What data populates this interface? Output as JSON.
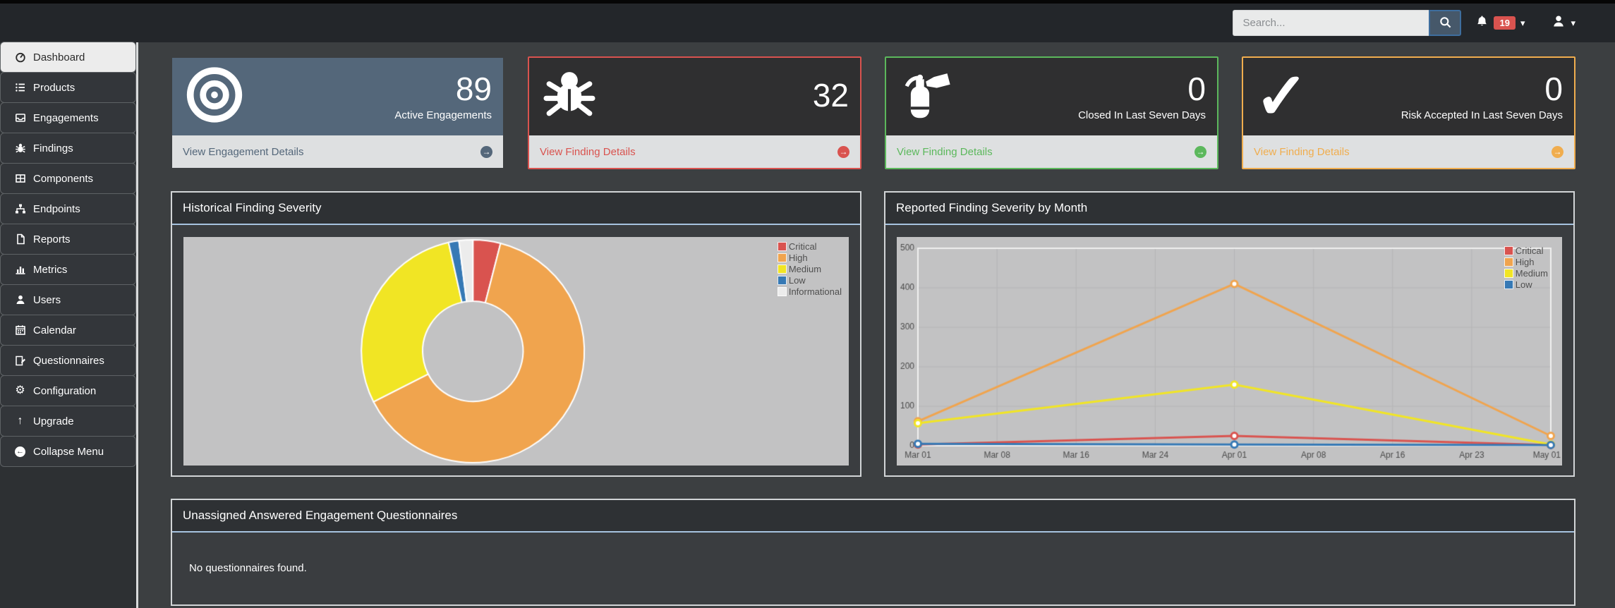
{
  "topbar": {
    "search_placeholder": "Search...",
    "notification_count": "19"
  },
  "icons": {
    "caret_down": "▾",
    "gear": "⚙",
    "arrow_up": "↑",
    "arrow_left": "←",
    "arrow_right": "→",
    "check": "✓"
  },
  "sidebar": {
    "items": [
      {
        "label": "Dashboard",
        "icon": "tachometer-icon",
        "active": true
      },
      {
        "label": "Products",
        "icon": "list-icon"
      },
      {
        "label": "Engagements",
        "icon": "inbox-icon"
      },
      {
        "label": "Findings",
        "icon": "bug-icon"
      },
      {
        "label": "Components",
        "icon": "table-icon"
      },
      {
        "label": "Endpoints",
        "icon": "sitemap-icon"
      },
      {
        "label": "Reports",
        "icon": "file-icon"
      },
      {
        "label": "Metrics",
        "icon": "bar-chart-icon"
      },
      {
        "label": "Users",
        "icon": "user-icon"
      },
      {
        "label": "Calendar",
        "icon": "calendar-icon"
      },
      {
        "label": "Questionnaires",
        "icon": "questionnaire-icon"
      },
      {
        "label": "Configuration",
        "icon": "gear-icon"
      },
      {
        "label": "Upgrade",
        "icon": "arrow-up-icon"
      },
      {
        "label": "Collapse Menu",
        "icon": "circle-arrow-left-icon"
      }
    ]
  },
  "cards": [
    {
      "icon": "bullseye-icon",
      "value": "89",
      "subtitle": "Active Engagements",
      "footer_label": "View Engagement Details",
      "accent": "#54677a",
      "body_bg": "#54677a",
      "border_color": "transparent"
    },
    {
      "icon": "bug-icon",
      "value": "32",
      "subtitle": "",
      "footer_label": "View Finding Details",
      "accent": "#d9534f",
      "body_bg": "#2f2f30",
      "border_color": "#d9534f"
    },
    {
      "icon": "fire-extinguisher-icon",
      "value": "0",
      "subtitle": "Closed In Last Seven Days",
      "footer_label": "View Finding Details",
      "accent": "#5cb85c",
      "body_bg": "#2f2f30",
      "border_color": "#5cb85c"
    },
    {
      "icon": "check-icon",
      "value": "0",
      "subtitle": "Risk Accepted In Last Seven Days",
      "footer_label": "View Finding Details",
      "accent": "#f0ad4e",
      "body_bg": "#2f2f30",
      "border_color": "#f0ad4e"
    }
  ],
  "panels": {
    "historical": {
      "title": "Historical Finding Severity"
    },
    "reported": {
      "title": "Reported Finding Severity by Month"
    },
    "questionnaires": {
      "title": "Unassigned Answered Engagement Questionnaires",
      "empty_message": "No questionnaires found."
    }
  },
  "chart_data": [
    {
      "type": "pie",
      "subtype": "donut",
      "title": "Historical Finding Severity",
      "labels": [
        "Critical",
        "High",
        "Medium",
        "Low",
        "Informational"
      ],
      "values_percent": [
        4,
        63.5,
        29,
        1.5,
        2
      ],
      "colors": [
        "#d9534f",
        "#f0a44e",
        "#f1e524",
        "#3679b5",
        "#ececec"
      ],
      "legend_position": "top-right",
      "plot_bg": "#c2c2c3",
      "inner_radius_ratio": 0.45
    },
    {
      "type": "line",
      "title": "Reported Finding Severity by Month",
      "x": [
        "Mar 01",
        "Apr 01",
        "May 01"
      ],
      "x_tick_labels": [
        "Mar 01",
        "Mar 08",
        "Mar 16",
        "Mar 24",
        "Apr 01",
        "Apr 08",
        "Apr 16",
        "Apr 23",
        "May 01"
      ],
      "ylim": [
        0,
        500
      ],
      "y_ticks": [
        0,
        100,
        200,
        300,
        400,
        500
      ],
      "series": [
        {
          "name": "Critical",
          "color": "#d9534f",
          "values": [
            3,
            25,
            2
          ]
        },
        {
          "name": "High",
          "color": "#f0a44e",
          "values": [
            62,
            410,
            25
          ]
        },
        {
          "name": "Medium",
          "color": "#f1e524",
          "values": [
            57,
            155,
            3
          ]
        },
        {
          "name": "Low",
          "color": "#3679b5",
          "values": [
            5,
            3,
            2
          ]
        }
      ],
      "legend_position": "top-right",
      "grid": true,
      "plot_bg": "#c2c2c3"
    }
  ]
}
